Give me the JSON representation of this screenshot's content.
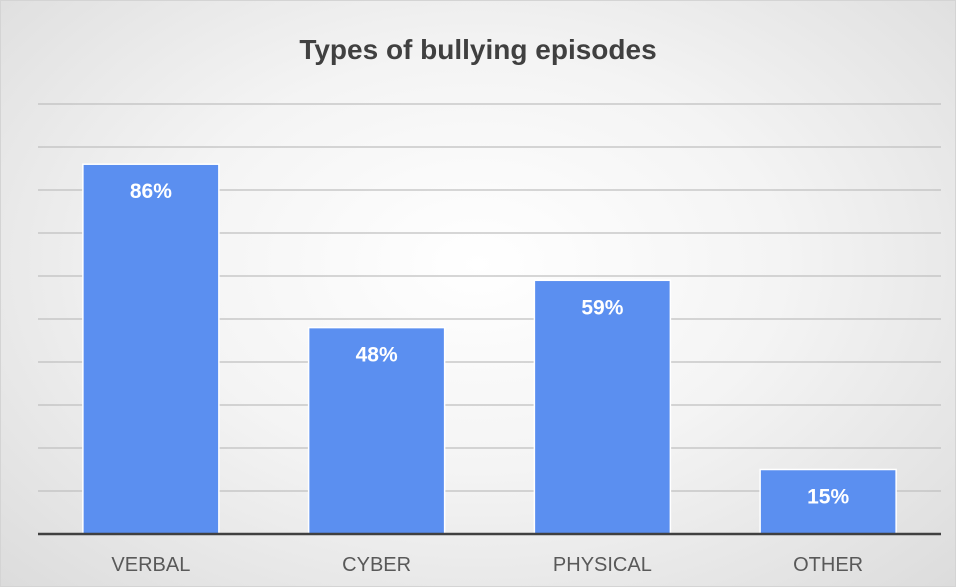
{
  "chart_data": {
    "type": "bar",
    "title": "Types of bullying episodes",
    "categories": [
      "VERBAL",
      "CYBER",
      "PHYSICAL",
      "OTHER"
    ],
    "values": [
      86,
      48,
      59,
      15
    ],
    "value_labels": [
      "86%",
      "48%",
      "59%",
      "15%"
    ],
    "ylim": [
      0,
      100
    ],
    "grid": true,
    "legend": "none",
    "colors": {
      "bar": "#5b8ff0",
      "bar_edge": "#ffffff",
      "grid": "#bfbfbf",
      "axis": "#404040"
    }
  }
}
